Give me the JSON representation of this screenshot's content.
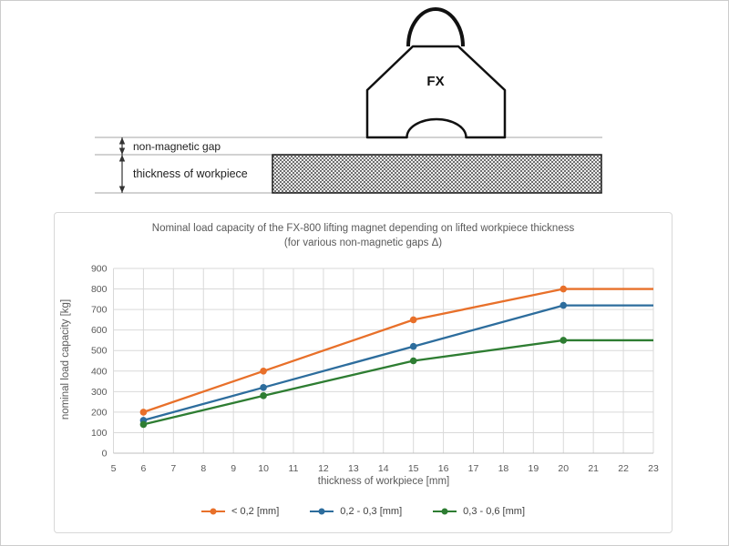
{
  "page": {
    "background": "#ffffff",
    "border_color": "#cccccc"
  },
  "diagram": {
    "magnet_label": "FX",
    "gap_label": "non-magnetic gap",
    "thickness_label": "thickness of workpiece"
  },
  "chart": {
    "title_line1": "Nominal load capacity of the FX-800 lifting magnet depending on lifted workpiece thickness",
    "title_line2": "(for various non-magnetic gaps Δ)"
  },
  "chart_data": {
    "type": "line",
    "title": "Nominal load capacity of the FX-800 lifting magnet depending on lifted workpiece thickness (for various non-magnetic gaps Δ)",
    "xlabel": "thickness of workpiece [mm]",
    "ylabel": "nominal load capacity [kg]",
    "xlim": [
      5,
      23
    ],
    "ylim": [
      0,
      900
    ],
    "xticks": [
      5,
      6,
      7,
      8,
      9,
      10,
      11,
      12,
      13,
      14,
      15,
      16,
      17,
      18,
      19,
      20,
      21,
      22,
      23
    ],
    "yticks": [
      0,
      100,
      200,
      300,
      400,
      500,
      600,
      700,
      800,
      900
    ],
    "grid": true,
    "grid_color": "#d9d9d9",
    "axis_color": "#bfbfbf",
    "tick_label_color": "#595959",
    "legend_position": "bottom",
    "x": [
      6,
      10,
      15,
      20,
      23
    ],
    "marker_points": [
      6,
      10,
      15,
      20
    ],
    "series": [
      {
        "name": "< 0,2 [mm]",
        "color": "#e8702a",
        "values": [
          200,
          400,
          650,
          800,
          800
        ]
      },
      {
        "name": "0,2 - 0,3 [mm]",
        "color": "#2d6d9d",
        "values": [
          160,
          320,
          520,
          720,
          720
        ]
      },
      {
        "name": "0,3 - 0,6 [mm]",
        "color": "#2e7d32",
        "values": [
          140,
          280,
          450,
          550,
          550
        ]
      }
    ]
  }
}
